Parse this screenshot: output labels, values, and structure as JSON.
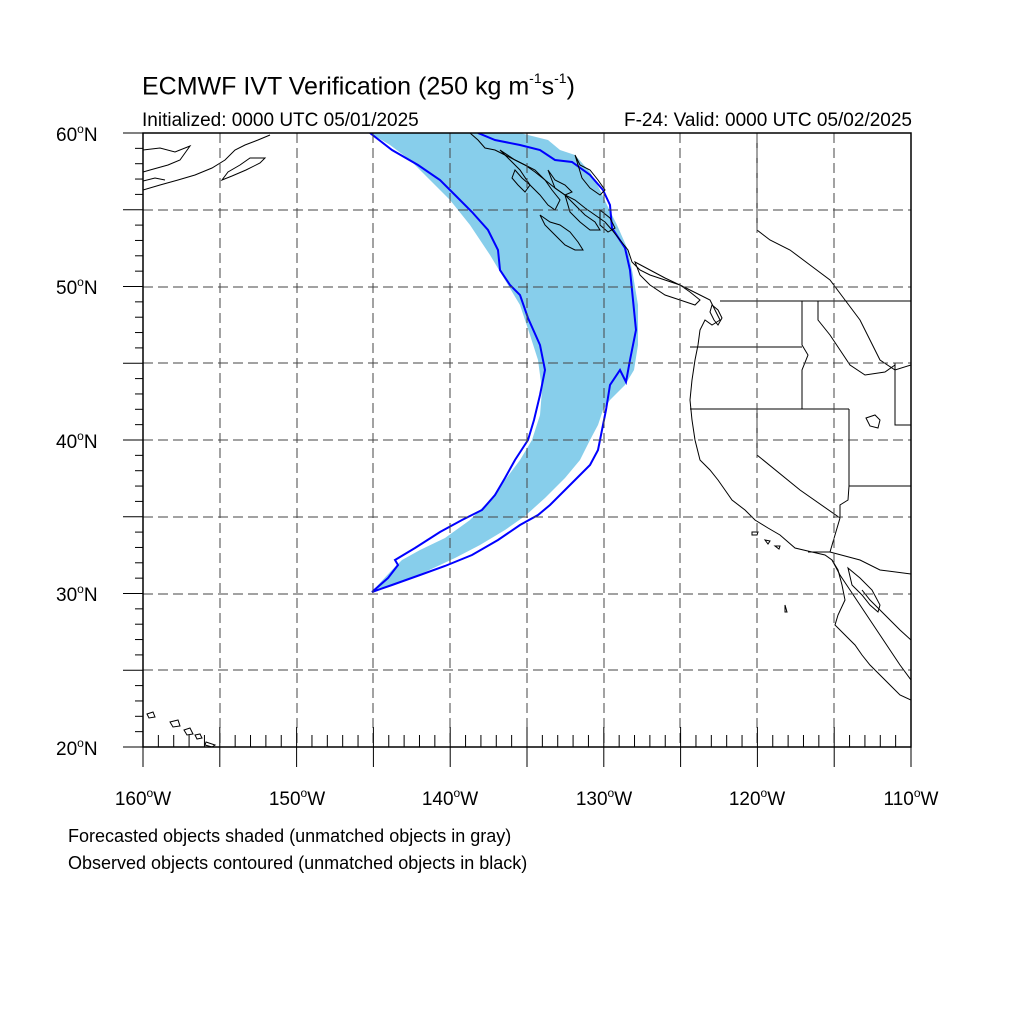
{
  "header": {
    "title_main": "ECMWF IVT Verification (250 kg m",
    "title_sup1": "-1",
    "title_mid": "s",
    "title_sup2": "-1",
    "title_end": ")",
    "initialized": "Initialized: 0000 UTC 05/01/2025",
    "valid": "F-24: Valid: 0000 UTC 05/02/2025"
  },
  "map": {
    "lon_range": [
      -160,
      -110
    ],
    "lat_range": [
      20,
      60
    ],
    "lat_labels": [
      "60oN",
      "50oN",
      "40oN",
      "30oN",
      "20oN"
    ],
    "lon_labels": [
      "160oW",
      "150oW",
      "140oW",
      "130oW",
      "120oW",
      "110oW"
    ],
    "gridlines": "dashed, every 5 degrees",
    "colors": {
      "forecast_fill": "#87ceeb",
      "observed_contour": "#0000ff",
      "coastline": "#000000"
    }
  },
  "legend_notes": {
    "line1": "Forecasted objects shaded (unmatched objects in gray)",
    "line2": "Observed objects contoured (unmatched objects in black)"
  }
}
